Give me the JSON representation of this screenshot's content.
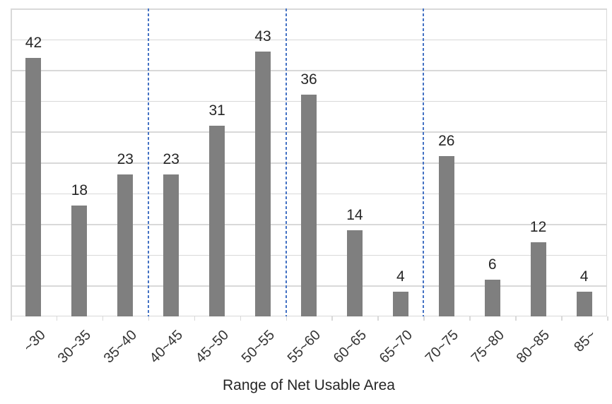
{
  "chart_data": {
    "type": "bar",
    "title": "",
    "xlabel": "Range of Net Usable Area",
    "ylabel": "",
    "categories": [
      "~30",
      "30~35",
      "35~40",
      "40~45",
      "45~50",
      "50~55",
      "55~60",
      "60~65",
      "65~70",
      "70~75",
      "75~80",
      "80~85",
      "85~"
    ],
    "values": [
      42,
      18,
      23,
      23,
      31,
      43,
      36,
      14,
      4,
      26,
      6,
      12,
      4
    ],
    "ylim": [
      0,
      50
    ],
    "gridline_interval": 5,
    "grid": true,
    "data_labels": "outside-end",
    "legend": "none",
    "x_tick_rotation_deg": -45,
    "separators_after_index": [
      2,
      5,
      8
    ],
    "separators_after_categories": [
      "35~40",
      "50~55",
      "65~70"
    ]
  },
  "colors": {
    "bar": "#7f7f7f",
    "gridline": "#d9d9d9",
    "axis_line": "#d9d9d9",
    "separator": "#4472c4",
    "value_label_text": "#262626",
    "axis_label_text": "#333333",
    "axis_title_text": "#262626",
    "background": "#ffffff"
  }
}
